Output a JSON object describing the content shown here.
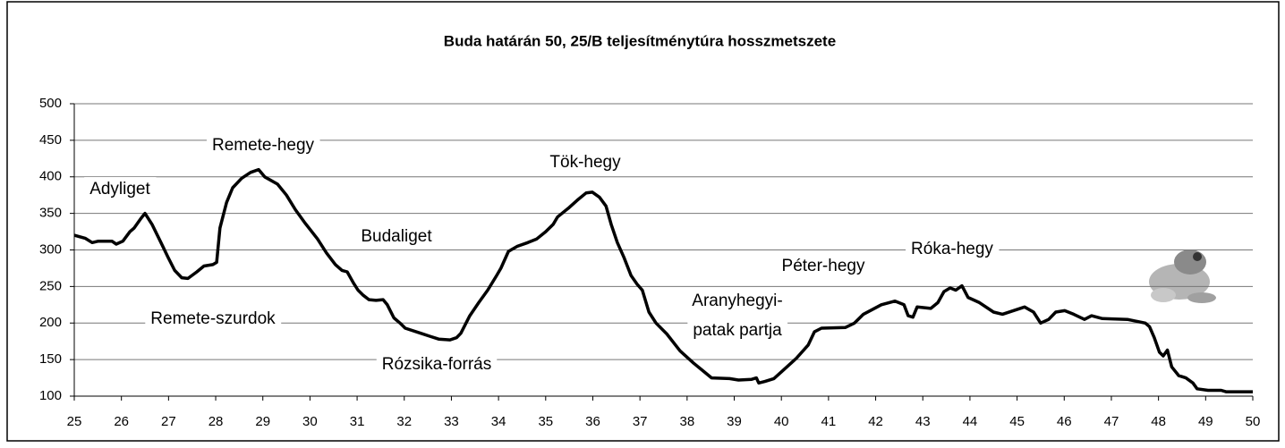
{
  "chart_data": {
    "type": "line",
    "title": "Buda határán 50, 25/B teljesítménytúra hosszmetszete",
    "annotations": [
      "Adyliget",
      "Remete-hegy",
      "Remete-szurdok",
      "Budaliget",
      "Rózsika-forrás",
      "Tök-hegy",
      "Aranyhegyi-",
      "patak partja",
      "Péter-hegy",
      "Róka-hegy"
    ],
    "x": [
      25.0,
      25.23,
      25.38,
      25.51,
      25.8,
      25.89,
      26.03,
      26.18,
      26.27,
      26.4,
      26.5,
      26.65,
      26.84,
      26.99,
      27.13,
      27.28,
      27.41,
      27.6,
      27.75,
      27.94,
      28.02,
      28.09,
      28.23,
      28.36,
      28.55,
      28.74,
      28.91,
      29.04,
      29.31,
      29.5,
      29.69,
      29.88,
      30.16,
      30.35,
      30.54,
      30.68,
      30.79,
      30.92,
      31.02,
      31.13,
      31.25,
      31.4,
      31.55,
      31.64,
      31.78,
      31.91,
      32.02,
      32.35,
      32.54,
      32.73,
      32.97,
      33.11,
      33.2,
      33.39,
      33.58,
      33.77,
      33.96,
      34.05,
      34.21,
      34.4,
      34.62,
      34.81,
      35.0,
      35.16,
      35.25,
      35.48,
      35.67,
      35.86,
      35.99,
      36.14,
      36.28,
      36.39,
      36.52,
      36.66,
      36.81,
      36.94,
      37.05,
      37.19,
      37.34,
      37.57,
      37.85,
      38.14,
      38.33,
      38.52,
      38.9,
      39.09,
      39.37,
      39.47,
      39.52,
      39.65,
      39.84,
      40.03,
      40.32,
      40.57,
      40.7,
      40.85,
      41.36,
      41.55,
      41.74,
      42.12,
      42.41,
      42.6,
      42.69,
      42.79,
      42.88,
      43.17,
      43.32,
      43.45,
      43.58,
      43.7,
      43.83,
      43.96,
      44.2,
      44.5,
      44.69,
      45.16,
      45.35,
      45.5,
      45.67,
      45.82,
      46.01,
      46.2,
      46.43,
      46.58,
      46.81,
      47.34,
      47.72,
      47.81,
      47.91,
      48.02,
      48.1,
      48.19,
      48.28,
      48.43,
      48.58,
      48.73,
      48.82,
      49.05,
      49.33,
      49.43,
      50.0
    ],
    "values": [
      320,
      316,
      310,
      312,
      312,
      308,
      312,
      325,
      330,
      342,
      350,
      335,
      310,
      290,
      272,
      262,
      261,
      270,
      278,
      280,
      283,
      330,
      365,
      385,
      398,
      406,
      410,
      400,
      390,
      375,
      355,
      338,
      315,
      296,
      280,
      272,
      270,
      255,
      245,
      238,
      232,
      231,
      232,
      225,
      207,
      200,
      193,
      186,
      182,
      178,
      177,
      180,
      186,
      210,
      228,
      245,
      265,
      275,
      298,
      305,
      310,
      315,
      325,
      335,
      345,
      357,
      368,
      378,
      379,
      372,
      360,
      335,
      310,
      290,
      265,
      253,
      245,
      215,
      200,
      185,
      162,
      145,
      135,
      125,
      124,
      122,
      123,
      125,
      118,
      120,
      124,
      135,
      152,
      170,
      188,
      193,
      194,
      200,
      212,
      225,
      230,
      225,
      210,
      208,
      222,
      220,
      228,
      243,
      248,
      245,
      251,
      235,
      228,
      215,
      212,
      222,
      215,
      200,
      205,
      215,
      217,
      212,
      205,
      210,
      206,
      205,
      200,
      195,
      180,
      160,
      155,
      163,
      140,
      128,
      125,
      118,
      110,
      108,
      108,
      106,
      106
    ],
    "color": "#000000",
    "xlim": [
      25,
      50
    ],
    "xticks": [
      25,
      26,
      27,
      28,
      29,
      30,
      31,
      32,
      33,
      34,
      35,
      36,
      37,
      38,
      39,
      40,
      41,
      42,
      43,
      44,
      45,
      46,
      47,
      48,
      49,
      50
    ],
    "ylim": [
      100,
      500
    ],
    "yticks": [
      100,
      150,
      200,
      250,
      300,
      350,
      400,
      450,
      500
    ],
    "grid": true
  }
}
